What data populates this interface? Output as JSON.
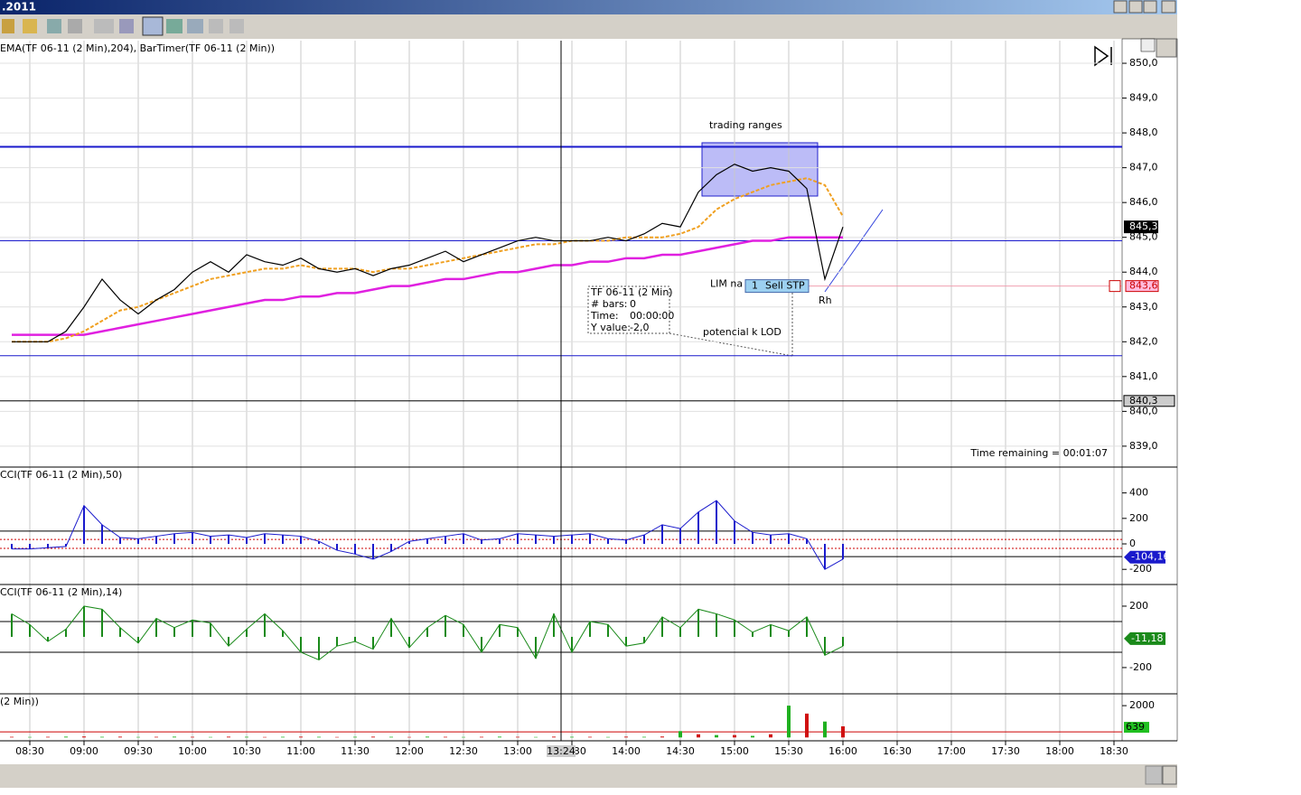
{
  "window": {
    "title": ".2011"
  },
  "time_axis": {
    "ticks": [
      "08:30",
      "09:00",
      "09:30",
      "10:00",
      "10:30",
      "11:00",
      "11:30",
      "12:00",
      "12:30",
      "13:00",
      "13:30",
      "14:00",
      "14:30",
      "15:00",
      "15:30",
      "16:00",
      "16:30",
      "17:00",
      "17:30",
      "18:00",
      "18:30"
    ],
    "cursor": "13:24"
  },
  "times": [
    "08:20",
    "08:30",
    "08:40",
    "08:50",
    "09:00",
    "09:10",
    "09:20",
    "09:30",
    "09:40",
    "09:50",
    "10:00",
    "10:10",
    "10:20",
    "10:30",
    "10:40",
    "10:50",
    "11:00",
    "11:10",
    "11:20",
    "11:30",
    "11:40",
    "11:50",
    "12:00",
    "12:10",
    "12:20",
    "12:30",
    "12:40",
    "12:50",
    "13:00",
    "13:10",
    "13:20",
    "13:30",
    "13:40",
    "13:50",
    "14:00",
    "14:10",
    "14:20",
    "14:30",
    "14:40",
    "14:50",
    "15:00",
    "15:10",
    "15:20",
    "15:30",
    "15:40",
    "15:50",
    "16:00"
  ],
  "price_panel": {
    "legend": "EMA(TF 06-11 (2 Min),204), BarTimer(TF 06-11 (2 Min))",
    "ylim": [
      838.4,
      850.65
    ],
    "yticks": [
      {
        "value": 839,
        "label": "839,0"
      },
      {
        "value": 840,
        "label": "840,0"
      },
      {
        "value": 841,
        "label": "841,0"
      },
      {
        "value": 842,
        "label": "842,0"
      },
      {
        "value": 843,
        "label": "843,0"
      },
      {
        "value": 844,
        "label": "844,0"
      },
      {
        "value": 845,
        "label": "845,0"
      },
      {
        "value": 846,
        "label": "846,0"
      },
      {
        "value": 847,
        "label": "847,0"
      },
      {
        "value": 848,
        "label": "848,0"
      },
      {
        "value": 849,
        "label": "849,0"
      },
      {
        "value": 850,
        "label": "850,0"
      }
    ],
    "close": [
      842.0,
      842.0,
      842.0,
      842.3,
      843.0,
      843.8,
      843.2,
      842.8,
      843.2,
      843.5,
      844.0,
      844.3,
      844.0,
      844.5,
      844.3,
      844.2,
      844.4,
      844.1,
      844.0,
      844.1,
      843.9,
      844.1,
      844.2,
      844.4,
      844.6,
      844.3,
      844.5,
      844.7,
      844.9,
      845.0,
      844.9,
      844.9,
      844.9,
      845.0,
      844.9,
      845.1,
      845.4,
      845.3,
      846.3,
      846.8,
      847.1,
      846.9,
      847.0,
      846.9,
      846.4,
      843.8,
      845.3
    ],
    "ema_fast": [
      842.0,
      842.0,
      842.0,
      842.1,
      842.3,
      842.6,
      842.9,
      843.0,
      843.2,
      843.4,
      843.6,
      843.8,
      843.9,
      844.0,
      844.1,
      844.1,
      844.2,
      844.1,
      844.1,
      844.1,
      844.0,
      844.1,
      844.1,
      844.2,
      844.3,
      844.4,
      844.5,
      844.6,
      844.7,
      844.8,
      844.8,
      844.9,
      844.9,
      844.9,
      845.0,
      845.0,
      845.0,
      845.1,
      845.3,
      845.8,
      846.1,
      846.3,
      846.5,
      846.6,
      846.7,
      846.5,
      845.6
    ],
    "ema_slow": [
      842.2,
      842.2,
      842.2,
      842.2,
      842.2,
      842.3,
      842.4,
      842.5,
      842.6,
      842.7,
      842.8,
      842.9,
      843.0,
      843.1,
      843.2,
      843.2,
      843.3,
      843.3,
      843.4,
      843.4,
      843.5,
      843.6,
      843.6,
      843.7,
      843.8,
      843.8,
      843.9,
      844.0,
      844.0,
      844.1,
      844.2,
      844.2,
      844.3,
      844.3,
      844.4,
      844.4,
      844.5,
      844.5,
      844.6,
      844.7,
      844.8,
      844.9,
      844.9,
      845.0,
      845.0,
      845.0,
      845.0
    ],
    "levels": [
      847.6,
      844.9,
      841.6
    ],
    "last_price": {
      "value": 845.3,
      "label": "845,3"
    },
    "order": {
      "value": 843.6,
      "label": "843,6",
      "name": "LIM na",
      "qty": "1",
      "type": "Sell STP"
    },
    "marker": {
      "value": 840.3,
      "label": "840,3"
    },
    "annotations": {
      "range": "trading ranges",
      "lod": "potencial k LOD",
      "rh": "Rh",
      "timer": "Time remaining = 00:01:07"
    },
    "tooltip": {
      "title": "TF 06-11 (2 Min)",
      "bars_label": "# bars:",
      "bars": "0",
      "time_label": "Time:",
      "time": "00:00:00",
      "y_label": "Y value:",
      "y": "-2,0"
    }
  },
  "cci50_panel": {
    "legend": "CCI(TF 06-11 (2 Min),50)",
    "ylim": [
      -319,
      603
    ],
    "yticks": [
      400,
      200,
      0,
      -200
    ],
    "levels": [
      100,
      -100
    ],
    "dotted": [
      35,
      -35
    ],
    "values": [
      -40,
      -40,
      -30,
      -20,
      300,
      150,
      50,
      40,
      60,
      80,
      90,
      60,
      70,
      50,
      80,
      70,
      60,
      20,
      -50,
      -80,
      -120,
      -60,
      20,
      40,
      60,
      80,
      30,
      40,
      80,
      70,
      60,
      70,
      80,
      40,
      30,
      70,
      150,
      120,
      250,
      340,
      180,
      90,
      70,
      80,
      40,
      -200,
      -120
    ],
    "last": {
      "value": -104.16,
      "label": "-104,16"
    }
  },
  "cci14_panel": {
    "legend": "CCI(TF 06-11 (2 Min),14)",
    "ylim": [
      -371,
      341
    ],
    "yticks": [
      200,
      -200
    ],
    "levels": [
      100,
      -100
    ],
    "values": [
      150,
      80,
      -30,
      50,
      200,
      180,
      60,
      -40,
      120,
      60,
      110,
      90,
      -60,
      50,
      150,
      40,
      -100,
      -150,
      -60,
      -30,
      -80,
      120,
      -70,
      60,
      140,
      80,
      -100,
      80,
      60,
      -140,
      150,
      -100,
      100,
      80,
      -60,
      -40,
      130,
      60,
      180,
      150,
      110,
      30,
      80,
      40,
      130,
      -120,
      -60
    ],
    "last": {
      "value": -11.18,
      "label": "-11,18"
    }
  },
  "volume_panel": {
    "legend": "(2 Min))",
    "ylim": [
      -210,
      2744
    ],
    "yticks": [
      2000
    ],
    "levels": [
      350
    ],
    "values": [
      40,
      30,
      40,
      50,
      60,
      40,
      50,
      30,
      40,
      50,
      40,
      30,
      50,
      40,
      30,
      40,
      50,
      40,
      30,
      40,
      50,
      40,
      30,
      50,
      40,
      30,
      40,
      50,
      40,
      30,
      50,
      40,
      40,
      30,
      50,
      40,
      60,
      400,
      200,
      150,
      150,
      100,
      200,
      2000,
      1500,
      1000,
      700
    ],
    "last": {
      "value": 639,
      "label": "639"
    }
  }
}
